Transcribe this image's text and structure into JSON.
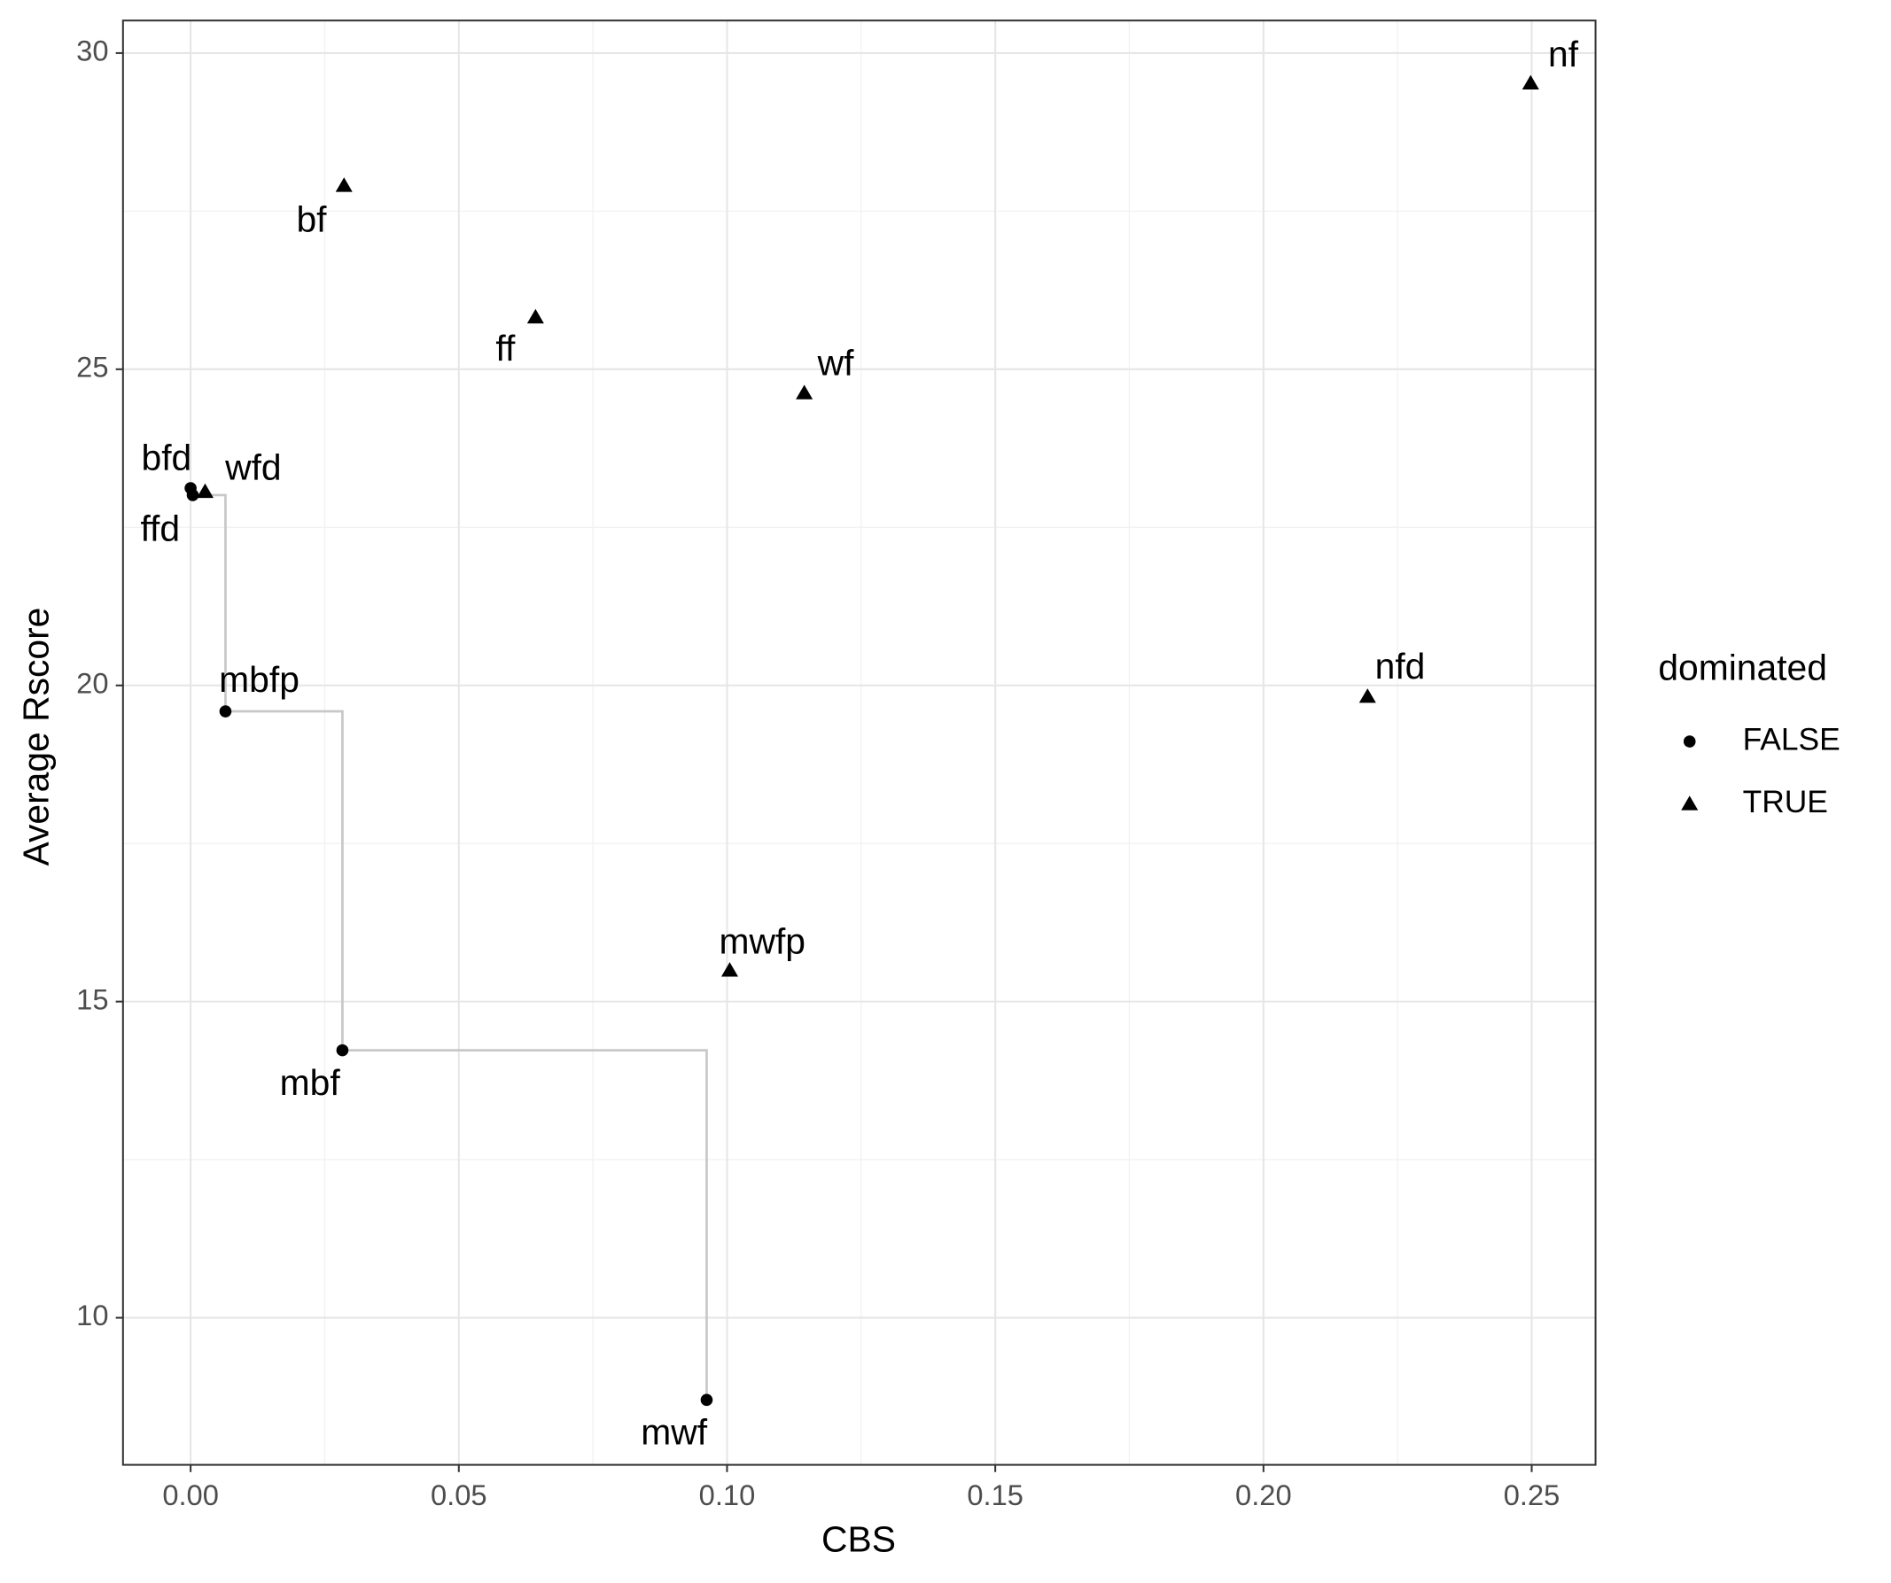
{
  "chart_data": {
    "type": "scatter",
    "x_label": "CBS",
    "y_label": "Average Rscore",
    "legend_title": "dominated",
    "legend_position": "right",
    "grid": true,
    "step_line_series": 0,
    "step_line_color": "#c8c8c8",
    "xlim": [
      -0.0126,
      0.2619
    ],
    "ylim": [
      7.674,
      30.515
    ],
    "xticks": [
      {
        "value": 0,
        "label": "0.00"
      },
      {
        "value": 0.05,
        "label": "0.05"
      },
      {
        "value": 0.1,
        "label": "0.10"
      },
      {
        "value": 0.15,
        "label": "0.15"
      },
      {
        "value": 0.2,
        "label": "0.20"
      },
      {
        "value": 0.25,
        "label": "0.25"
      }
    ],
    "yticks": [
      10,
      15,
      20,
      25,
      30
    ],
    "series": [
      {
        "name": "FALSE",
        "shape": "circle",
        "color": "#000000",
        "labels": [
          "bfd",
          "ffd",
          "mbfp",
          "mbf",
          "mwf"
        ],
        "x": [
          0.0,
          0.0004,
          0.0065,
          0.0283,
          0.0962
        ],
        "values": [
          23.12,
          23.01,
          19.59,
          14.23,
          8.7
        ]
      },
      {
        "name": "TRUE",
        "shape": "triangle",
        "color": "#000000",
        "labels": [
          "nf",
          "bf",
          "ff",
          "wf",
          "wfd",
          "nfd",
          "mwfp"
        ],
        "x": [
          0.2498,
          0.0286,
          0.0643,
          0.1144,
          0.0027,
          0.2194,
          0.1005
        ],
        "values": [
          29.52,
          27.9,
          25.82,
          24.62,
          23.06,
          19.82,
          15.49
        ]
      }
    ]
  }
}
